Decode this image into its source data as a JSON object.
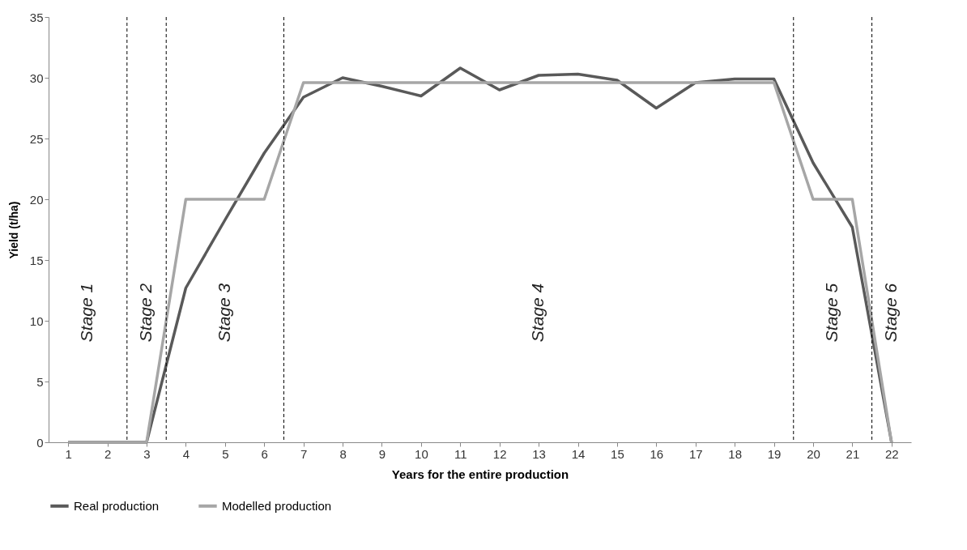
{
  "chart_data": {
    "type": "line",
    "xlabel": "Years for the entire production",
    "ylabel": "Yield (t/ha)",
    "x": [
      1,
      2,
      3,
      4,
      5,
      6,
      7,
      8,
      9,
      10,
      11,
      12,
      13,
      14,
      15,
      16,
      17,
      18,
      19,
      20,
      21,
      22
    ],
    "xlim": [
      0.5,
      22.5
    ],
    "xticks": [
      1,
      2,
      3,
      4,
      5,
      6,
      7,
      8,
      9,
      10,
      11,
      12,
      13,
      14,
      15,
      16,
      17,
      18,
      19,
      20,
      21,
      22
    ],
    "ylim": [
      0,
      35
    ],
    "yticks": [
      0,
      5,
      10,
      15,
      20,
      25,
      30,
      35
    ],
    "grid": false,
    "legend": "bottom",
    "series": [
      {
        "name": "Real production",
        "color": "#595959",
        "values": [
          0,
          0,
          0,
          12.7,
          18.3,
          23.8,
          28.4,
          30.0,
          29.3,
          28.5,
          30.8,
          29.0,
          30.2,
          30.3,
          29.8,
          27.5,
          29.6,
          29.9,
          29.9,
          23.0,
          17.7,
          0
        ]
      },
      {
        "name": "Modelled production",
        "color": "#a6a6a6",
        "values": [
          0,
          0,
          0,
          20,
          20,
          20,
          29.6,
          29.6,
          29.6,
          29.6,
          29.6,
          29.6,
          29.6,
          29.6,
          29.6,
          29.6,
          29.6,
          29.6,
          29.6,
          20,
          20,
          0
        ]
      }
    ],
    "ref_lines": [
      {
        "axis": "x",
        "value": 2.5,
        "color": "#000000",
        "line_style": "dashed"
      },
      {
        "axis": "x",
        "value": 3.5,
        "color": "#000000",
        "line_style": "dashed"
      },
      {
        "axis": "x",
        "value": 6.5,
        "color": "#000000",
        "line_style": "dashed"
      },
      {
        "axis": "x",
        "value": 19.5,
        "color": "#000000",
        "line_style": "dashed"
      },
      {
        "axis": "x",
        "value": 21.5,
        "color": "#000000",
        "line_style": "dashed"
      }
    ],
    "annotations": [
      "Stage 1",
      "Stage 2",
      "Stage 3",
      "Stage 4",
      "Stage 5",
      "Stage 6"
    ]
  }
}
